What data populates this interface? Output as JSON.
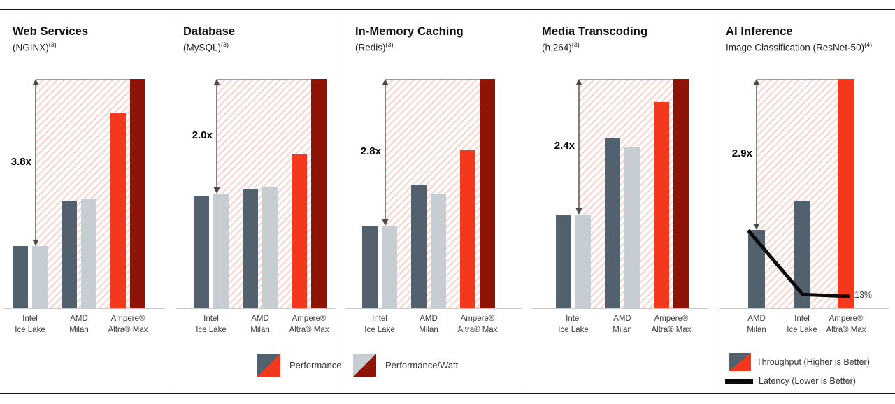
{
  "colors": {
    "performance_bar": "#52616d",
    "perf_watt_bar": "#c6cdd3",
    "ampere_performance_bar": "#f4381d",
    "ampere_perf_watt_bar": "#8e1408",
    "latency_line": "#0a0a0a",
    "hatch_stripe": "#f5d9d2",
    "frame_rule": "#111111"
  },
  "chart_data": [
    {
      "type": "bar",
      "title": "Web Services",
      "subtitle": "(NGINX)",
      "footnote": "(3)",
      "multiplier_label": "3.8x",
      "categories": [
        [
          "Intel",
          "Ice Lake"
        ],
        [
          "AMD",
          "Milan"
        ],
        [
          "Ampere®",
          "Altra® Max"
        ]
      ],
      "series": [
        {
          "name": "Performance",
          "values": [
            0.27,
            0.47,
            0.85
          ]
        },
        {
          "name": "Performance/Watt",
          "values": [
            0.27,
            0.48,
            1.0
          ]
        }
      ],
      "ylim": [
        0,
        1
      ],
      "annotation": "arrow spans Intel bar top to Ampere Performance/Watt top"
    },
    {
      "type": "bar",
      "title": "Database",
      "subtitle": "(MySQL)",
      "footnote": "(3)",
      "multiplier_label": "2.0x",
      "categories": [
        [
          "Intel",
          "Ice Lake"
        ],
        [
          "AMD",
          "Milan"
        ],
        [
          "Ampere®",
          "Altra® Max"
        ]
      ],
      "series": [
        {
          "name": "Performance",
          "values": [
            0.49,
            0.52,
            0.67
          ]
        },
        {
          "name": "Performance/Watt",
          "values": [
            0.5,
            0.53,
            1.0
          ]
        }
      ],
      "ylim": [
        0,
        1
      ],
      "annotation": "arrow spans Intel bar top to Ampere Performance/Watt top"
    },
    {
      "type": "bar",
      "title": "In-Memory Caching",
      "subtitle": "(Redis)",
      "footnote": "(3)",
      "multiplier_label": "2.8x",
      "categories": [
        [
          "Intel",
          "Ice Lake"
        ],
        [
          "AMD",
          "Milan"
        ],
        [
          "Ampere®",
          "Altra® Max"
        ]
      ],
      "series": [
        {
          "name": "Performance",
          "values": [
            0.36,
            0.54,
            0.69
          ]
        },
        {
          "name": "Performance/Watt",
          "values": [
            0.36,
            0.5,
            1.0
          ]
        }
      ],
      "ylim": [
        0,
        1
      ],
      "annotation": "arrow spans Intel bar top to Ampere Performance/Watt top"
    },
    {
      "type": "bar",
      "title": "Media Transcoding",
      "subtitle": "(h.264)",
      "footnote": "(3)",
      "multiplier_label": "2.4x",
      "categories": [
        [
          "Intel",
          "Ice Lake"
        ],
        [
          "AMD",
          "Milan"
        ],
        [
          "Ampere®",
          "Altra® Max"
        ]
      ],
      "series": [
        {
          "name": "Performance",
          "values": [
            0.41,
            0.74,
            0.9
          ]
        },
        {
          "name": "Performance/Watt",
          "values": [
            0.41,
            0.7,
            1.0
          ]
        }
      ],
      "ylim": [
        0,
        1
      ],
      "annotation": "arrow spans Intel bar top to Ampere Performance/Watt top"
    },
    {
      "type": "bar+line",
      "title": "AI Inference",
      "subtitle": "Image Classification (ResNet-50)",
      "footnote": "(4)",
      "multiplier_label": "2.9x",
      "categories": [
        [
          "AMD",
          "Milan"
        ],
        [
          "Intel",
          "Ice Lake"
        ],
        [
          "Ampere®",
          "Altra® Max"
        ]
      ],
      "series": [
        {
          "name": "Throughput",
          "values": [
            0.34,
            0.47,
            1.0
          ]
        }
      ],
      "line": {
        "name": "Latency",
        "values": [
          0.34,
          0.06,
          0.052
        ],
        "end_label": "13%"
      },
      "ylim": [
        0,
        1
      ],
      "annotation": "arrow spans AMD bar top to Ampere throughput top; latency falls to 13%"
    }
  ],
  "legend_center": {
    "items": [
      {
        "label": "Performance",
        "swatch": [
          "#52616d",
          "#f4381d"
        ]
      },
      {
        "label": "Performance/Watt",
        "swatch": [
          "#c6cdd3",
          "#8e1408"
        ]
      }
    ]
  },
  "legend_ai": {
    "items": [
      {
        "label": "Throughput (Higher is Better)",
        "swatch": [
          "#52616d",
          "#f4381d"
        ],
        "kind": "split-square"
      },
      {
        "label": "Latency (Lower is Better)",
        "swatch": [
          "#0a0a0a"
        ],
        "kind": "line"
      }
    ]
  }
}
